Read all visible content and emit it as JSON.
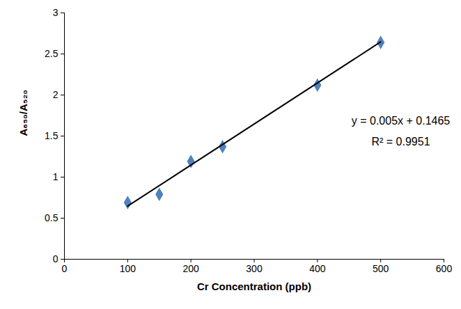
{
  "chart_data": {
    "type": "scatter",
    "x_label": "Cr Concentration (ppb)",
    "y_label": "A₆₅₀/A₅₂₀",
    "xlim": [
      0,
      600
    ],
    "xticks": [
      0,
      100,
      200,
      300,
      400,
      500,
      600
    ],
    "ylim": [
      0,
      3
    ],
    "yticks": [
      0,
      0.5,
      1,
      1.5,
      2,
      2.5,
      3
    ],
    "grid": false,
    "series": [
      {
        "type": "scatter",
        "marker": "diamond",
        "color": "#4f81bd",
        "x": [
          100,
          150,
          200,
          250,
          400,
          500
        ],
        "values": [
          0.69,
          0.79,
          1.19,
          1.37,
          2.12,
          2.64
        ]
      },
      {
        "type": "line",
        "line_style": "solid",
        "color": "#000000",
        "x": [
          100,
          500
        ],
        "values": [
          0.6465,
          2.6465
        ]
      }
    ],
    "annotations": [
      "y = 0.005x + 0.1465",
      "R² = 0.9951"
    ]
  }
}
